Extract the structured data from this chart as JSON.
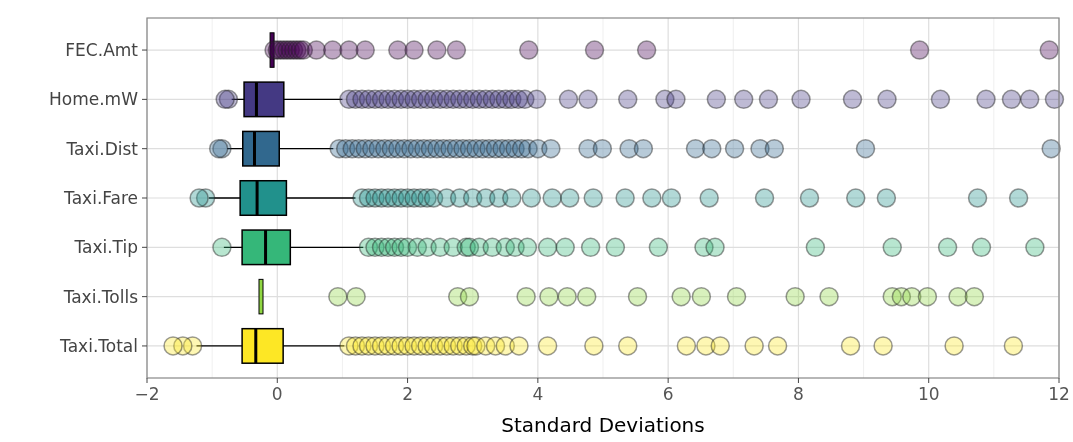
{
  "chart_data": {
    "type": "box",
    "orientation": "horizontal",
    "xlabel": "Standard Deviations",
    "categories": [
      "FEC.Amt",
      "Home.mW",
      "Taxi.Dist",
      "Taxi.Fare",
      "Taxi.Tip",
      "Taxi.Tolls",
      "Taxi.Total"
    ],
    "colors": [
      "#440154",
      "#443983",
      "#31688e",
      "#21918c",
      "#35b779",
      "#90d743",
      "#fde725"
    ],
    "xlim": [
      -2,
      12
    ],
    "xticks": [
      {
        "value": -2,
        "label": "−2"
      },
      0,
      2,
      4,
      6,
      8,
      10,
      12
    ],
    "grid": true,
    "boxes": [
      {
        "low": -0.08,
        "q1": -0.08,
        "median": -0.08,
        "q3": -0.08,
        "high": -0.08,
        "outliers": [
          -0.05,
          0,
          0.05,
          0.1,
          0.15,
          0.2,
          0.25,
          0.3,
          0.35,
          0.4,
          0.6,
          0.85,
          1.1,
          1.35,
          1.85,
          2.1,
          2.45,
          2.75,
          3.86,
          4.87,
          5.67,
          9.86,
          11.85
        ]
      },
      {
        "low": -0.7,
        "q1": -0.51,
        "median": -0.32,
        "q3": 0.1,
        "high": 1.0,
        "outliers": [
          -0.75,
          -0.8,
          1.1,
          1.2,
          1.3,
          1.4,
          1.5,
          1.6,
          1.7,
          1.8,
          1.9,
          2.0,
          2.1,
          2.2,
          2.3,
          2.4,
          2.5,
          2.6,
          2.7,
          2.8,
          2.9,
          3.0,
          3.1,
          3.2,
          3.3,
          3.4,
          3.5,
          3.6,
          3.7,
          3.8,
          3.98,
          4.47,
          4.77,
          5.38,
          5.95,
          6.12,
          6.74,
          7.16,
          7.54,
          8.04,
          8.83,
          9.36,
          10.18,
          10.88,
          11.27,
          11.55,
          11.93
        ]
      },
      {
        "low": -0.77,
        "q1": -0.53,
        "median": -0.35,
        "q3": 0.03,
        "high": 0.86,
        "outliers": [
          -0.85,
          -0.9,
          0.95,
          1.05,
          1.15,
          1.25,
          1.35,
          1.45,
          1.55,
          1.65,
          1.75,
          1.85,
          1.95,
          2.05,
          2.15,
          2.25,
          2.35,
          2.45,
          2.55,
          2.65,
          2.75,
          2.85,
          2.95,
          3.05,
          3.15,
          3.25,
          3.35,
          3.45,
          3.55,
          3.65,
          3.75,
          3.85,
          4.0,
          4.2,
          4.77,
          4.99,
          5.4,
          5.62,
          6.42,
          6.67,
          7.02,
          7.41,
          7.63,
          9.03,
          11.88
        ]
      },
      {
        "low": -1.05,
        "q1": -0.57,
        "median": -0.31,
        "q3": 0.14,
        "high": 1.2,
        "outliers": [
          -1.1,
          -1.2,
          1.3,
          1.4,
          1.5,
          1.6,
          1.7,
          1.8,
          1.9,
          2.0,
          2.1,
          2.2,
          2.3,
          2.4,
          2.6,
          2.8,
          3.0,
          3.2,
          3.4,
          3.6,
          3.9,
          4.22,
          4.49,
          4.85,
          5.34,
          5.75,
          6.05,
          6.63,
          7.48,
          8.17,
          8.88,
          9.35,
          10.75,
          11.38
        ]
      },
      {
        "low": -0.82,
        "q1": -0.54,
        "median": -0.18,
        "q3": 0.2,
        "high": 1.32,
        "outliers": [
          -0.85,
          1.4,
          1.5,
          1.6,
          1.7,
          1.8,
          1.9,
          2.0,
          2.15,
          2.3,
          2.5,
          2.7,
          2.9,
          2.95,
          3.1,
          3.3,
          3.5,
          3.65,
          3.84,
          4.15,
          4.42,
          4.81,
          5.19,
          5.85,
          6.55,
          6.72,
          8.26,
          9.44,
          10.29,
          10.81,
          11.63
        ]
      },
      {
        "low": -0.25,
        "q1": -0.25,
        "median": -0.25,
        "q3": -0.25,
        "high": -0.25,
        "outliers": [
          0.93,
          1.21,
          2.77,
          2.95,
          3.82,
          4.17,
          4.45,
          4.75,
          5.53,
          6.2,
          6.51,
          7.05,
          7.95,
          8.47,
          9.44,
          9.58,
          9.74,
          9.98,
          10.45,
          10.7
        ]
      },
      {
        "low": -1.24,
        "q1": -0.54,
        "median": -0.33,
        "q3": 0.09,
        "high": 1.03,
        "outliers": [
          -1.3,
          -1.45,
          -1.6,
          1.1,
          1.2,
          1.3,
          1.4,
          1.5,
          1.6,
          1.7,
          1.8,
          1.9,
          2.0,
          2.1,
          2.2,
          2.3,
          2.4,
          2.5,
          2.6,
          2.7,
          2.8,
          2.9,
          3.0,
          3.05,
          3.2,
          3.35,
          3.5,
          3.71,
          4.15,
          4.86,
          5.38,
          6.28,
          6.58,
          6.8,
          7.32,
          7.68,
          8.8,
          9.3,
          10.39,
          11.3
        ]
      }
    ]
  }
}
